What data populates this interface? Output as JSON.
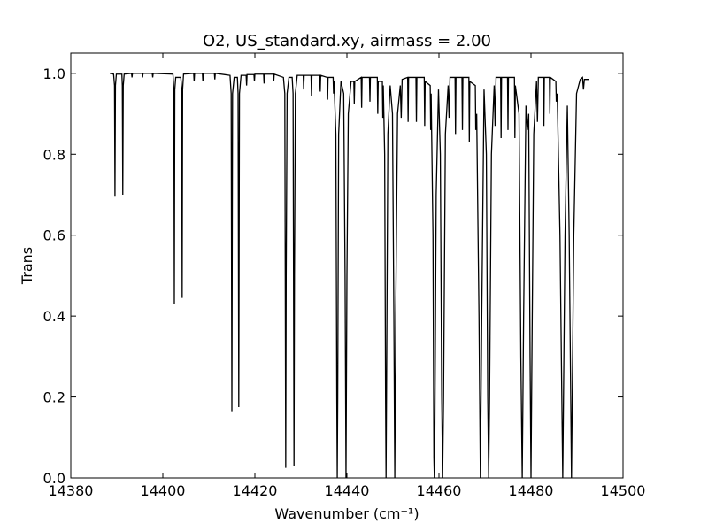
{
  "chart_data": {
    "type": "line",
    "title": "O2, US_standard.xy, airmass = 2.00",
    "xlabel": "Wavenumber (cm⁻¹)",
    "ylabel": "Trans",
    "color": "#000000",
    "xlim": [
      14380,
      14500
    ],
    "xticks": [
      14380,
      14400,
      14420,
      14440,
      14460,
      14480,
      14500
    ],
    "ylim": [
      0,
      1.05
    ],
    "yticks": [
      {
        "value": 0,
        "label": "0.0"
      },
      0.2,
      0.4,
      0.6,
      0.8,
      {
        "value": 1,
        "label": "1.0"
      }
    ],
    "x": [
      14388.5,
      14389.3,
      14389.5,
      14389.6,
      14389.7,
      14389.9,
      14391.1,
      14391.2,
      14391.3,
      14391.4,
      14391.6,
      14393.2,
      14393.3,
      14393.4,
      14395.5,
      14395.6,
      14395.7,
      14397.7,
      14397.8,
      14397.9,
      14402.2,
      14402.4,
      14402.5,
      14402.6,
      14402.8,
      14403.9,
      14404.1,
      14404.2,
      14404.3,
      14404.5,
      14406.7,
      14406.8,
      14406.9,
      14408.6,
      14408.7,
      14408.8,
      14411.2,
      14411.3,
      14411.4,
      14414.6,
      14414.85,
      14415.0,
      14415.15,
      14415.5,
      14416.2,
      14416.35,
      14416.5,
      14416.65,
      14417.0,
      14418.1,
      14418.2,
      14418.3,
      14419.8,
      14419.9,
      14420.0,
      14421.9,
      14422.0,
      14422.1,
      14424.0,
      14424.1,
      14424.2,
      14426.2,
      14426.5,
      14426.6,
      14426.7,
      14426.8,
      14427.0,
      14427.4,
      14428.1,
      14428.3,
      14428.4,
      14428.5,
      14428.6,
      14428.8,
      14429.2,
      14430.5,
      14430.6,
      14430.7,
      14432.2,
      14432.3,
      14432.4,
      14434.1,
      14434.2,
      14434.3,
      14435.7,
      14435.8,
      14435.9,
      14437.0,
      14437.1,
      14437.2,
      14437.6,
      14437.8,
      14437.9,
      14438.0,
      14438.2,
      14438.7,
      14439.3,
      14439.6,
      14439.8,
      14440.0,
      14440.3,
      14440.9,
      14441.5,
      14441.6,
      14441.7,
      14443.1,
      14443.2,
      14443.3,
      14444.9,
      14445.0,
      14445.1,
      14446.6,
      14446.7,
      14446.8,
      14447.7,
      14447.8,
      14447.9,
      14448.2,
      14448.4,
      14448.5,
      14448.6,
      14448.9,
      14449.4,
      14449.9,
      14450.2,
      14450.4,
      14450.6,
      14451.0,
      14451.6,
      14451.8,
      14452.0,
      14453.2,
      14453.3,
      14453.4,
      14455.0,
      14455.1,
      14455.2,
      14456.8,
      14456.9,
      14457.0,
      14458.1,
      14458.2,
      14458.3,
      14458.7,
      14458.9,
      14459.0,
      14459.1,
      14459.4,
      14459.9,
      14460.3,
      14460.6,
      14460.8,
      14461.0,
      14461.4,
      14462.0,
      14462.2,
      14462.4,
      14463.5,
      14463.6,
      14463.7,
      14465.0,
      14465.1,
      14465.2,
      14466.5,
      14466.6,
      14466.7,
      14467.9,
      14468.0,
      14468.2,
      14468.7,
      14469.0,
      14469.3,
      14469.8,
      14470.3,
      14470.6,
      14470.8,
      14471.0,
      14471.4,
      14472.0,
      14472.2,
      14472.4,
      14473.4,
      14473.5,
      14473.6,
      14474.9,
      14475.0,
      14475.1,
      14476.4,
      14476.5,
      14476.6,
      14477.4,
      14477.8,
      14478.1,
      14478.4,
      14478.9,
      14479.2,
      14479.5,
      14479.8,
      14480.0,
      14480.2,
      14480.6,
      14481.2,
      14481.4,
      14481.6,
      14482.7,
      14482.8,
      14482.9,
      14484.0,
      14484.1,
      14484.2,
      14485.4,
      14485.5,
      14485.7,
      14486.3,
      14486.9,
      14487.4,
      14487.9,
      14488.3,
      14488.8,
      14489.3,
      14489.9,
      14490.7,
      14491.2,
      14491.4,
      14491.6,
      14492.5
    ],
    "values": [
      1.0,
      0.998,
      0.97,
      0.695,
      0.97,
      0.998,
      0.998,
      0.97,
      0.7,
      0.97,
      0.998,
      1.0,
      0.99,
      1.0,
      1.0,
      0.99,
      1.0,
      1.0,
      0.99,
      1.0,
      0.998,
      0.96,
      0.43,
      0.96,
      0.99,
      0.99,
      0.96,
      0.445,
      0.96,
      0.998,
      1.0,
      0.98,
      1.0,
      1.0,
      0.98,
      1.0,
      1.0,
      0.985,
      1.0,
      0.995,
      0.95,
      0.165,
      0.95,
      0.99,
      0.99,
      0.95,
      0.175,
      0.95,
      0.995,
      0.995,
      0.97,
      0.997,
      0.997,
      0.98,
      0.998,
      0.998,
      0.975,
      0.998,
      0.998,
      0.98,
      0.998,
      0.99,
      0.95,
      0.5,
      0.025,
      0.5,
      0.95,
      0.99,
      0.99,
      0.95,
      0.5,
      0.03,
      0.5,
      0.95,
      0.995,
      0.995,
      0.96,
      0.995,
      0.995,
      0.945,
      0.995,
      0.995,
      0.955,
      0.995,
      0.99,
      0.935,
      0.99,
      0.99,
      0.95,
      0.98,
      0.85,
      0.2,
      0.0,
      0.2,
      0.85,
      0.98,
      0.95,
      0.5,
      0.0,
      0.5,
      0.9,
      0.98,
      0.98,
      0.925,
      0.98,
      0.99,
      0.915,
      0.99,
      0.99,
      0.93,
      0.99,
      0.99,
      0.9,
      0.98,
      0.98,
      0.89,
      0.97,
      0.8,
      0.2,
      0.0,
      0.2,
      0.85,
      0.97,
      0.9,
      0.4,
      0.0,
      0.4,
      0.9,
      0.97,
      0.89,
      0.985,
      0.99,
      0.88,
      0.99,
      0.99,
      0.88,
      0.99,
      0.99,
      0.87,
      0.98,
      0.97,
      0.86,
      0.95,
      0.6,
      0.05,
      0.0,
      0.1,
      0.7,
      0.96,
      0.8,
      0.2,
      0.0,
      0.2,
      0.85,
      0.97,
      0.89,
      0.99,
      0.99,
      0.85,
      0.99,
      0.99,
      0.86,
      0.99,
      0.99,
      0.83,
      0.98,
      0.97,
      0.86,
      0.9,
      0.4,
      0.0,
      0.4,
      0.96,
      0.8,
      0.2,
      0.0,
      0.2,
      0.8,
      0.97,
      0.87,
      0.99,
      0.99,
      0.84,
      0.99,
      0.99,
      0.86,
      0.99,
      0.99,
      0.84,
      0.97,
      0.9,
      0.3,
      0.0,
      0.4,
      0.92,
      0.86,
      0.9,
      0.3,
      0.0,
      0.3,
      0.85,
      0.98,
      0.88,
      0.99,
      0.99,
      0.87,
      0.99,
      0.99,
      0.9,
      0.99,
      0.98,
      0.93,
      0.95,
      0.6,
      0.0,
      0.6,
      0.92,
      0.6,
      0.0,
      0.6,
      0.95,
      0.985,
      0.99,
      0.96,
      0.985,
      0.985
    ]
  }
}
